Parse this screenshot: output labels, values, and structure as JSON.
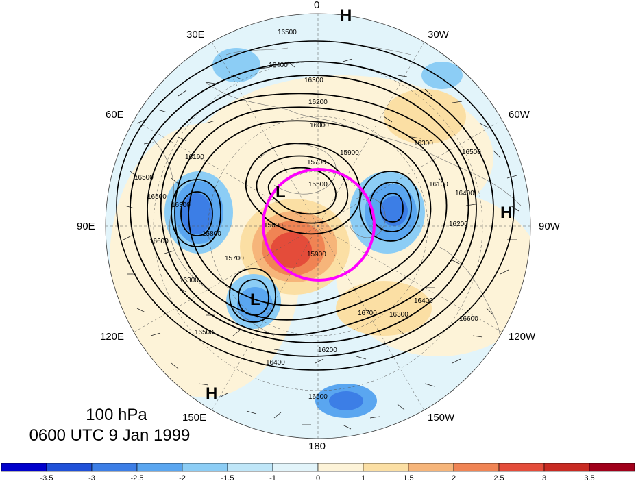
{
  "longitude_labels": [
    "0",
    "30W",
    "60W",
    "90W",
    "120W",
    "150W",
    "180",
    "150E",
    "120E",
    "90E",
    "60E",
    "30E"
  ],
  "pressure_level": "100 hPa",
  "valid_time": "0600 UTC 9 Jan 1999",
  "pressure_centers": [
    "H",
    "H",
    "H",
    "L",
    "L"
  ],
  "contour_labels": [
    "16500",
    "16400",
    "16300",
    "16200",
    "16000",
    "15900",
    "15700",
    "15500",
    "15600",
    "15900",
    "16300",
    "16500",
    "16400",
    "16200",
    "16100",
    "15800",
    "16600",
    "16500",
    "16300",
    "16100",
    "15700",
    "16300",
    "16500",
    "16400",
    "16200",
    "16700",
    "16300",
    "16400",
    "16500",
    "16600",
    "16500"
  ],
  "colorbar": {
    "ticks": [
      "-3.5",
      "-3",
      "-2.5",
      "-2",
      "-1.5",
      "-1",
      "0",
      "1",
      "1.5",
      "2",
      "2.5",
      "3",
      "3.5"
    ],
    "colors": [
      "#0000cc",
      "#1f50d8",
      "#3c7ee6",
      "#5aa6f0",
      "#8ccdf5",
      "#bfe6f8",
      "#e2f4fa",
      "#fdf3d8",
      "#fbdfa4",
      "#f6b57a",
      "#f08454",
      "#e44c3a",
      "#c82a22",
      "#a0001a"
    ]
  },
  "highlight_color": "#ff00ff"
}
